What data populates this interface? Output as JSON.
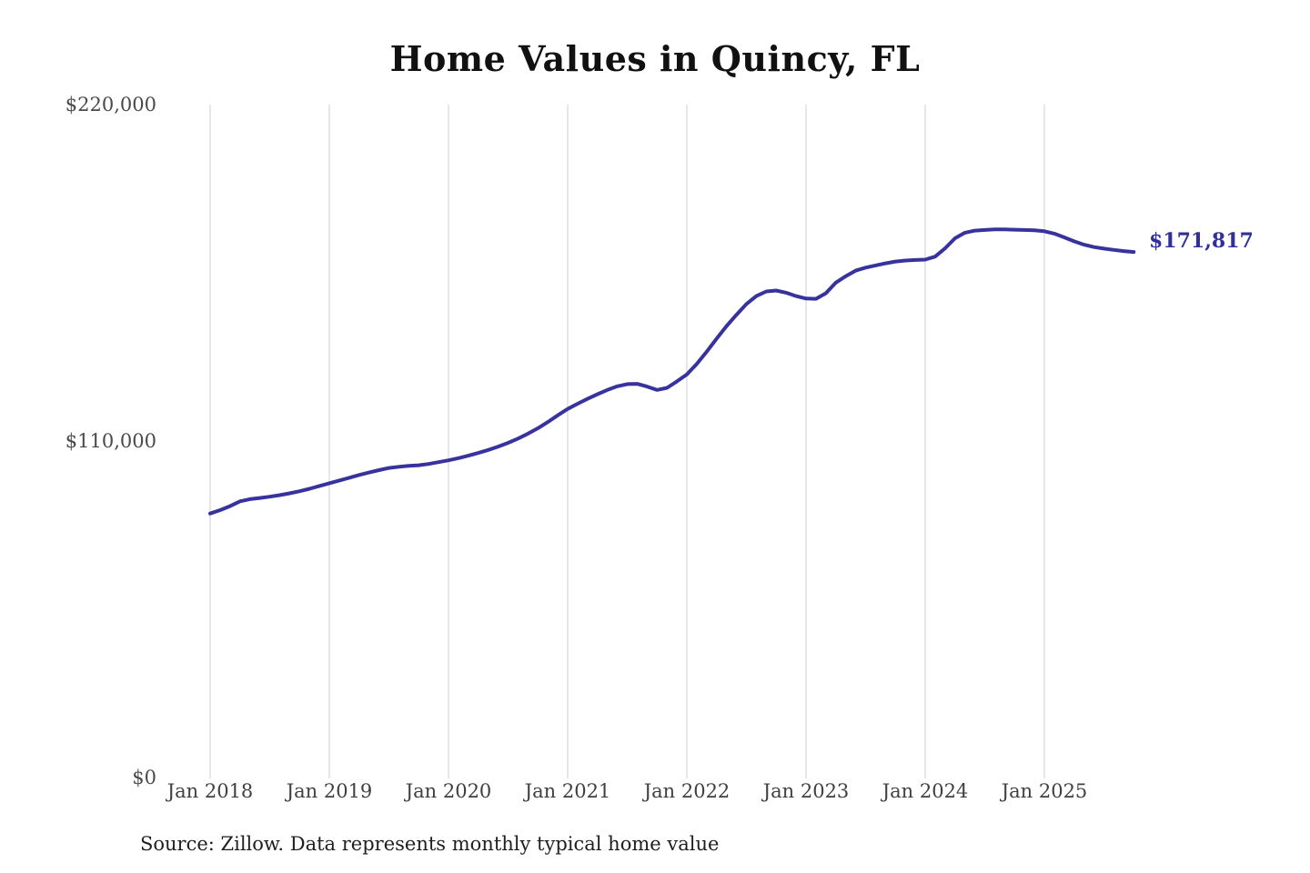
{
  "page": {
    "background_color": "#ffffff"
  },
  "chart_data": {
    "type": "line",
    "title": "Home Values in Quincy, FL",
    "source_note": "Source: Zillow. Data represents monthly typical home value",
    "end_label": "$171,817",
    "latest_value": 171817,
    "unit": "USD",
    "frequency": "monthly",
    "legend": "none",
    "grid": "vertical-only",
    "line_color": "#37329e",
    "grid_color": "#cfcfcf",
    "ylim": [
      0,
      220000
    ],
    "y_tick_labels": [
      "$220,000",
      "$110,000",
      "$0"
    ],
    "y_tick_values": [
      220000,
      110000,
      0
    ],
    "x_tick_labels": [
      "Jan 2018",
      "Jan 2019",
      "Jan 2020",
      "Jan 2021",
      "Jan 2022",
      "Jan 2023",
      "Jan 2024",
      "Jan 2025"
    ],
    "months": [
      "2018-01",
      "2018-02",
      "2018-03",
      "2018-04",
      "2018-05",
      "2018-06",
      "2018-07",
      "2018-08",
      "2018-09",
      "2018-10",
      "2018-11",
      "2018-12",
      "2019-01",
      "2019-02",
      "2019-03",
      "2019-04",
      "2019-05",
      "2019-06",
      "2019-07",
      "2019-08",
      "2019-09",
      "2019-10",
      "2019-11",
      "2019-12",
      "2020-01",
      "2020-02",
      "2020-03",
      "2020-04",
      "2020-05",
      "2020-06",
      "2020-07",
      "2020-08",
      "2020-09",
      "2020-10",
      "2020-11",
      "2020-12",
      "2021-01",
      "2021-02",
      "2021-03",
      "2021-04",
      "2021-05",
      "2021-06",
      "2021-07",
      "2021-08",
      "2021-09",
      "2021-10",
      "2021-11",
      "2021-12",
      "2022-01",
      "2022-02",
      "2022-03",
      "2022-04",
      "2022-05",
      "2022-06",
      "2022-07",
      "2022-08",
      "2022-09",
      "2022-10",
      "2022-11",
      "2022-12",
      "2023-01",
      "2023-02",
      "2023-03",
      "2023-04",
      "2023-05",
      "2023-06",
      "2023-07",
      "2023-08",
      "2023-09",
      "2023-10",
      "2023-11",
      "2023-12",
      "2024-01",
      "2024-02",
      "2024-03",
      "2024-04",
      "2024-05",
      "2024-06",
      "2024-07",
      "2024-08",
      "2024-09",
      "2024-10",
      "2024-11",
      "2024-12",
      "2025-01",
      "2025-02",
      "2025-03",
      "2025-04",
      "2025-05",
      "2025-06",
      "2025-07",
      "2025-08",
      "2025-09",
      "2025-10"
    ],
    "values": [
      86300,
      87400,
      88700,
      90300,
      91000,
      91400,
      91800,
      92300,
      92900,
      93600,
      94400,
      95300,
      96200,
      97100,
      98000,
      98900,
      99700,
      100500,
      101200,
      101600,
      101900,
      102100,
      102500,
      103100,
      103700,
      104400,
      105200,
      106100,
      107100,
      108200,
      109400,
      110800,
      112400,
      114200,
      116200,
      118400,
      120500,
      122200,
      123800,
      125300,
      126700,
      127900,
      128600,
      128700,
      127800,
      126700,
      127400,
      129500,
      131800,
      135200,
      139200,
      143500,
      147600,
      151300,
      154800,
      157400,
      158900,
      159200,
      158500,
      157400,
      156600,
      156500,
      158300,
      161800,
      163900,
      165700,
      166700,
      167400,
      168100,
      168700,
      169000,
      169200,
      169300,
      170300,
      173000,
      176300,
      178100,
      178800,
      179000,
      179200,
      179200,
      179100,
      179000,
      178900,
      178600,
      177800,
      176600,
      175300,
      174200,
      173400,
      172900,
      172500,
      172100,
      171817
    ]
  }
}
